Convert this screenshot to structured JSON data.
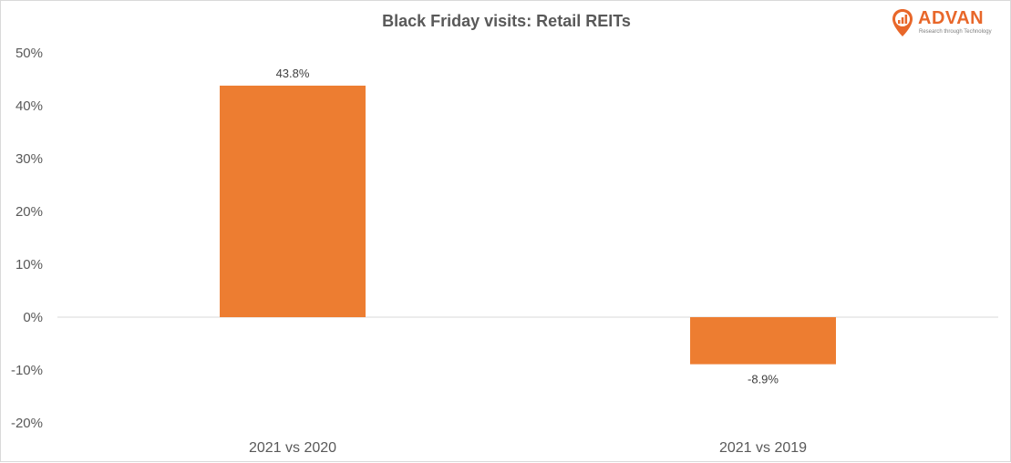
{
  "logo": {
    "name": "ADVAN",
    "tagline": "Research through Technology",
    "color": "#e8672a"
  },
  "chart_data": {
    "type": "bar",
    "title": "Black Friday visits: Retail REITs",
    "categories": [
      "2021 vs 2020",
      "2021 vs 2019"
    ],
    "values": [
      43.8,
      -8.9
    ],
    "data_labels": [
      "43.8%",
      "-8.9%"
    ],
    "yticks": [
      50,
      40,
      30,
      20,
      10,
      0,
      -10,
      -20
    ],
    "ytick_labels": [
      "50%",
      "40%",
      "30%",
      "20%",
      "10%",
      "0%",
      "-10%",
      "-20%"
    ],
    "ylim": [
      -20,
      50
    ],
    "xlabel": "",
    "ylabel": "",
    "grid": false,
    "legend": "none",
    "bar_color": "#ed7d31"
  }
}
